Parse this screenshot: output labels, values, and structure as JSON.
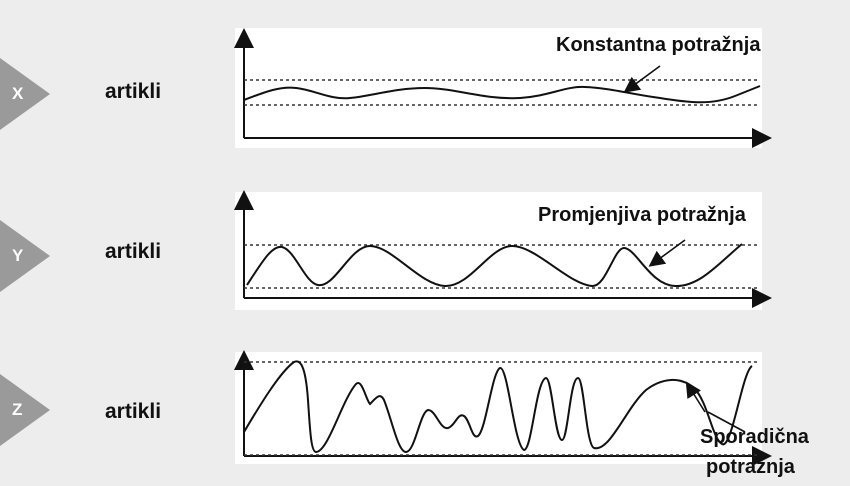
{
  "rows": [
    {
      "letter": "X",
      "label": "artikli",
      "annotation": "Konstantna potražnja",
      "demand_type": "constant"
    },
    {
      "letter": "Y",
      "label": "artikli",
      "annotation": "Promjenjiva potražnja",
      "demand_type": "variable"
    },
    {
      "letter": "Z",
      "label": "artikli",
      "annotation_line1": "Sporadična",
      "annotation_line2": "potražnja",
      "demand_type": "sporadic"
    }
  ],
  "colors": {
    "background": "#ededed",
    "panel": "#ffffff",
    "chevron": "#9a9a9a",
    "curve": "#111111",
    "dashed_line": "#333333"
  }
}
